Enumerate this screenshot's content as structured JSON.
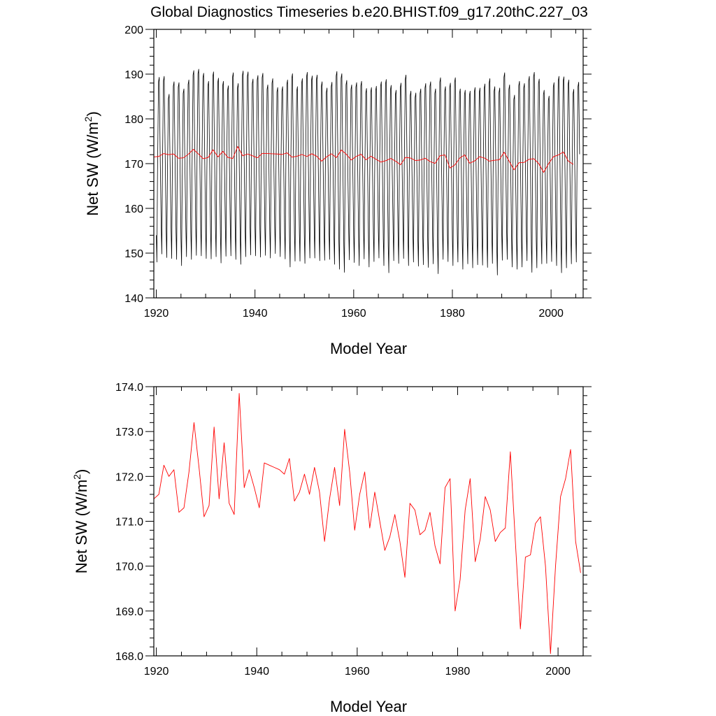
{
  "title": "Global Diagnostics Timeseries b.e20.BHIST.f09_g17.20thC.227_03",
  "colors": {
    "monthly": "#000000",
    "annual": "#ff0000",
    "frame": "#000000"
  },
  "chart_data": [
    {
      "type": "line",
      "name": "monthly-and-annual",
      "xlabel": "Model Year",
      "ylabel_main": "Net SW (W/m",
      "ylabel_sup": "2",
      "ylabel_end": ")",
      "xlim": [
        1919.5,
        2006.5
      ],
      "ylim": [
        140,
        200
      ],
      "xticks": [
        1920,
        1940,
        1960,
        1980,
        2000
      ],
      "xtick_labels": [
        "1920",
        "1940",
        "1960",
        "1980",
        "2000"
      ],
      "yticks": [
        140,
        150,
        160,
        170,
        180,
        190,
        200
      ],
      "ytick_labels": [
        "140",
        "150",
        "160",
        "170",
        "180",
        "190",
        "200"
      ],
      "series": [
        {
          "name": "monthly",
          "color": "#000000",
          "start_year": 1920,
          "peaks": [
            189.3,
            189.5,
            185.5,
            188.3,
            188.1,
            186.7,
            188.7,
            190.8,
            191.1,
            190.2,
            188.4,
            190.5,
            189.1,
            188.4,
            187.4,
            190.3,
            187.9,
            190.7,
            190.5,
            188.9,
            189.7,
            190.2,
            187.6,
            189.0,
            187.0,
            187.2,
            188.7,
            190.1,
            187.2,
            189.0,
            190.4,
            189.6,
            189.8,
            188.3,
            186.9,
            188.2,
            190.6,
            190.1,
            188.6,
            187.6,
            188.1,
            188.4,
            186.8,
            187.0,
            187.3,
            188.3,
            188.8,
            187.5,
            186.4,
            188.0,
            189.8,
            186.2,
            185.8,
            186.7,
            187.9,
            188.3,
            186.7,
            189.2,
            187.2,
            188.0,
            189.2,
            186.7,
            186.4,
            186.2,
            187.0,
            186.9,
            187.8,
            189.0,
            187.2,
            186.9,
            190.3,
            187.6,
            185.3,
            188.4,
            187.9,
            189.5,
            190.4,
            188.9,
            186.4,
            185.1,
            188.1,
            189.5,
            189.4,
            188.7,
            186.6,
            188.2
          ],
          "troughs": [
            148.0,
            149.8,
            149.0,
            148.8,
            148.6,
            147.2,
            149.2,
            148.6,
            149.5,
            149.4,
            148.8,
            148.7,
            149.2,
            147.8,
            149.3,
            149.4,
            148.6,
            147.5,
            149.2,
            149.6,
            149.4,
            149.1,
            149.5,
            148.9,
            149.9,
            149.2,
            148.7,
            146.9,
            148.2,
            148.2,
            147.7,
            148.9,
            148.9,
            148.3,
            148.4,
            148.6,
            147.5,
            146.4,
            145.7,
            148.5,
            147.9,
            147.2,
            148.7,
            146.9,
            148.1,
            148.9,
            147.2,
            145.6,
            148.3,
            147.7,
            148.8,
            147.2,
            148.0,
            147.1,
            147.4,
            146.8,
            147.6,
            145.4,
            148.6,
            148.1,
            147.2,
            148.0,
            146.4,
            147.6,
            146.7,
            147.4,
            147.3,
            146.8,
            147.7,
            145.1,
            148.4,
            148.6,
            146.9,
            146.4,
            146.9,
            148.3,
            145.7,
            146.7,
            147.6,
            147.7,
            148.1,
            147.2,
            145.6,
            146.7,
            147.6,
            148.0
          ]
        },
        {
          "name": "annual",
          "color": "#ff0000",
          "ref": "annual_values"
        }
      ]
    },
    {
      "type": "line",
      "name": "annual-mean",
      "xlabel": "Model Year",
      "ylabel_main": "Net SW (W/m",
      "ylabel_sup": "2",
      "ylabel_end": ")",
      "xlim": [
        1919.5,
        2005
      ],
      "ylim": [
        168.0,
        174.0
      ],
      "xticks": [
        1920,
        1940,
        1960,
        1980,
        2000
      ],
      "xtick_labels": [
        "1920",
        "1940",
        "1960",
        "1980",
        "2000"
      ],
      "yticks": [
        168,
        169,
        170,
        171,
        172,
        173,
        174
      ],
      "ytick_labels": [
        "168.0",
        "169.0",
        "170.0",
        "171.0",
        "172.0",
        "173.0",
        "174.0"
      ],
      "series": [
        {
          "name": "annual",
          "color": "#ff0000",
          "ref": "annual_values"
        }
      ]
    }
  ],
  "annual_values": {
    "start_year": 1919.5,
    "values": [
      171.5,
      171.6,
      172.25,
      172.0,
      172.15,
      171.2,
      171.3,
      172.1,
      173.2,
      172.2,
      171.1,
      171.35,
      173.1,
      171.5,
      172.75,
      171.4,
      171.15,
      173.85,
      171.75,
      172.15,
      171.75,
      171.3,
      172.3,
      172.25,
      172.2,
      172.15,
      172.05,
      172.4,
      171.45,
      171.65,
      172.05,
      171.6,
      172.2,
      171.65,
      170.55,
      171.5,
      172.2,
      171.35,
      173.05,
      172.1,
      170.8,
      171.6,
      172.1,
      170.85,
      171.65,
      171.0,
      170.35,
      170.65,
      171.15,
      170.55,
      169.75,
      171.4,
      171.25,
      170.7,
      170.8,
      171.2,
      170.45,
      170.05,
      171.75,
      171.95,
      169.0,
      169.7,
      171.25,
      171.95,
      170.1,
      170.6,
      171.55,
      171.25,
      170.55,
      170.75,
      170.85,
      172.55,
      170.55,
      168.6,
      170.2,
      170.25,
      170.95,
      171.1,
      170.0,
      168.05,
      170.0,
      171.55,
      171.95,
      172.6,
      170.55,
      169.85
    ]
  }
}
